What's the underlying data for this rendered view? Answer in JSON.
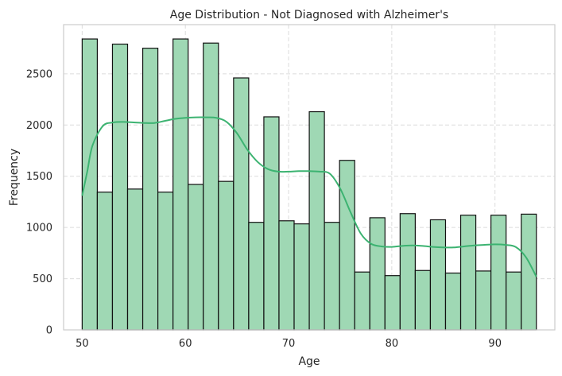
{
  "chart_data": {
    "type": "bar",
    "title": "Age Distribution - Not Diagnosed with Alzheimer's",
    "xlabel": "Age",
    "ylabel": "Frequency",
    "xlim": [
      48.2,
      95.8
    ],
    "ylim": [
      0,
      2980
    ],
    "grid": true,
    "x_ticks": [
      50,
      60,
      70,
      80,
      90
    ],
    "y_ticks": [
      0,
      500,
      1000,
      1500,
      2000,
      2500
    ],
    "bin_start": 50,
    "bin_width": 1.467,
    "values": [
      2840,
      1345,
      2790,
      1375,
      2750,
      1345,
      2840,
      1420,
      2800,
      1450,
      2460,
      1050,
      2080,
      1065,
      1035,
      2130,
      1050,
      1655,
      565,
      1095,
      530,
      1135,
      580,
      1075,
      555,
      1120,
      575,
      1120,
      565,
      1130
    ],
    "bar_color": "#9fd8b4",
    "kde_color": "#3cb371",
    "kde": {
      "x": [
        50,
        50.5,
        51,
        52,
        53,
        54,
        55,
        56,
        57,
        58,
        59,
        60,
        61,
        62,
        63,
        64,
        65,
        66,
        67,
        68,
        69,
        70,
        71,
        72,
        73,
        74,
        75,
        76,
        77,
        78,
        79,
        80,
        81,
        82,
        83,
        84,
        85,
        86,
        87,
        88,
        89,
        90,
        91,
        92,
        93,
        94
      ],
      "y": [
        1310,
        1550,
        1800,
        1990,
        2025,
        2030,
        2025,
        2020,
        2020,
        2040,
        2060,
        2070,
        2075,
        2075,
        2070,
        2030,
        1920,
        1760,
        1640,
        1570,
        1545,
        1545,
        1550,
        1550,
        1545,
        1525,
        1380,
        1150,
        940,
        840,
        815,
        810,
        820,
        825,
        820,
        810,
        805,
        805,
        815,
        825,
        830,
        835,
        830,
        810,
        710,
        520
      ]
    }
  }
}
